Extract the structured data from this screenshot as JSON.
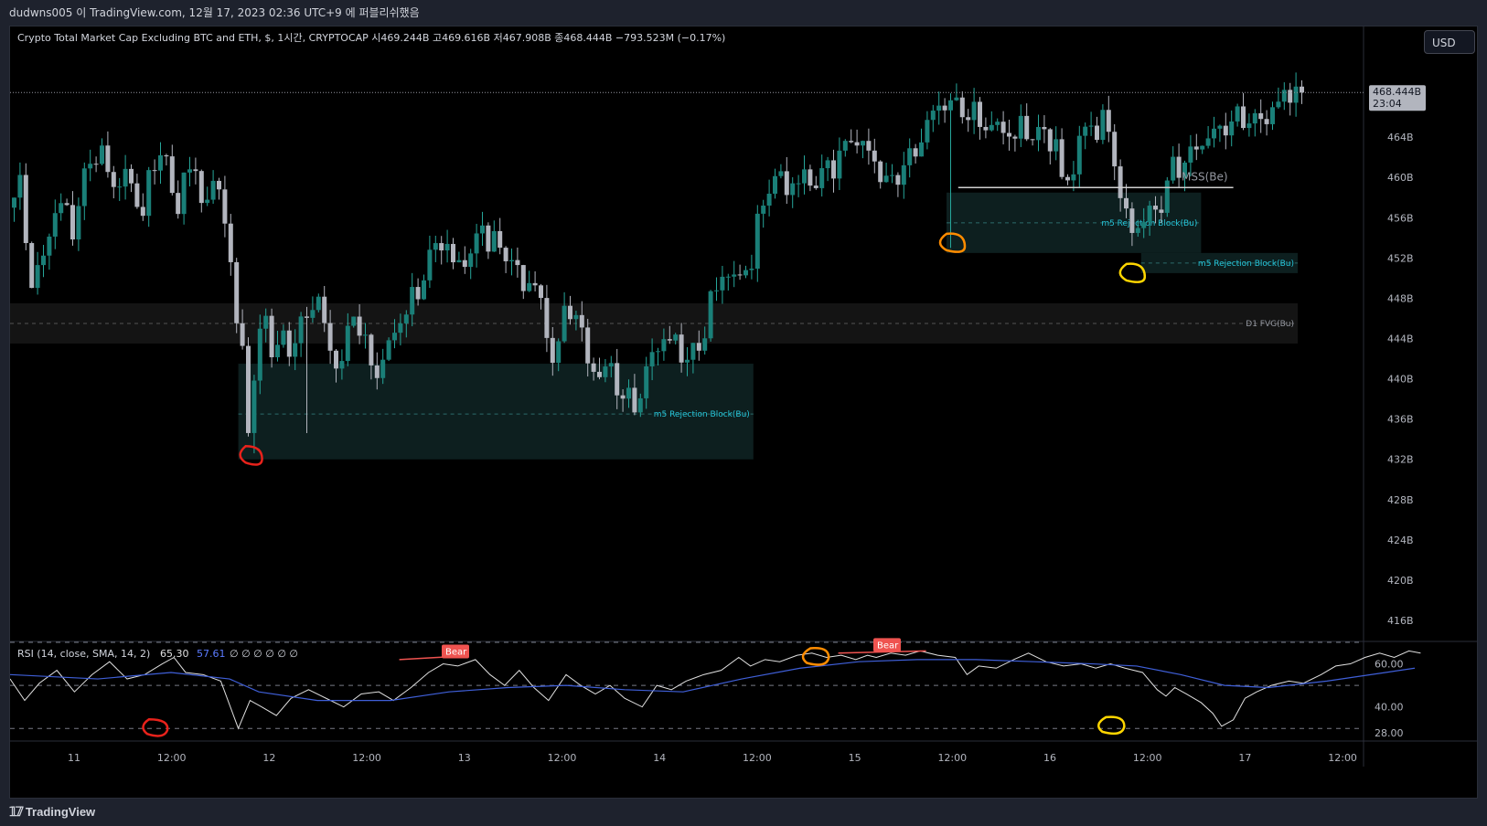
{
  "header": {
    "publish_line": "dudwns005 이 TradingView.com, 12월 17, 2023 02:36 UTC+9 에 퍼블리쉬했음"
  },
  "legend": {
    "symbol": "Crypto Total Market Cap Excluding BTC and ETH, $, 1시간, CRYPTOCAP",
    "ohlc_text": "시469.244B  고469.616B  저467.908B  종468.444B  −793.523M (−0.17%)"
  },
  "currency_button": "USD",
  "rsi_legend": {
    "label": "RSI (14, close, SMA, 14, 2)",
    "rsi_value": "65.30",
    "ma_value": "57.61",
    "extras": "∅ ∅ ∅ ∅ ∅ ∅"
  },
  "price_tag": {
    "price": "468.444B",
    "countdown": "23:04"
  },
  "branding": "TradingView",
  "colors": {
    "up": "#26a69a",
    "up_body": "#1a7f78",
    "down": "#b2b5be",
    "rsi_line": "#e0e0e0",
    "rsi_ma": "#3f5fd8",
    "bear_label": "#ef5350",
    "zone_fill": "#0d1f1f",
    "fvg_fill": "#141414",
    "zone_label": "#26c6da",
    "circle_red": "#e8221b",
    "circle_orange": "#ff8c00",
    "circle_yellow": "#ffd600"
  },
  "chart_data": [
    {
      "type": "candlestick",
      "title": "Crypto Total Market Cap Excluding BTC and ETH, $, 1시간, CRYPTOCAP",
      "ylim": [
        414,
        475
      ],
      "y_ticks": [
        416,
        420,
        424,
        428,
        432,
        436,
        440,
        444,
        448,
        452,
        456,
        460,
        464
      ],
      "y_tick_labels": [
        "416B",
        "420B",
        "424B",
        "428B",
        "432B",
        "436B",
        "440B",
        "444B",
        "448B",
        "452B",
        "456B",
        "460B",
        "464B"
      ],
      "x_tick_labels": [
        "11",
        "12:00",
        "12",
        "12:00",
        "13",
        "12:00",
        "14",
        "12:00",
        "15",
        "12:00",
        "16",
        "12:00",
        "17",
        "12:00"
      ],
      "last_price": 468.444,
      "close_path": [
        [
          0,
          457
        ],
        [
          8,
          459
        ],
        [
          16,
          449.5
        ],
        [
          24,
          452
        ],
        [
          34,
          458
        ],
        [
          44,
          455
        ],
        [
          54,
          461
        ],
        [
          62,
          463
        ],
        [
          72,
          459
        ],
        [
          80,
          460.5
        ],
        [
          90,
          456.5
        ],
        [
          98,
          460
        ],
        [
          106,
          464
        ],
        [
          114,
          455.5
        ],
        [
          122,
          462
        ],
        [
          132,
          458
        ],
        [
          140,
          459
        ],
        [
          148,
          457
        ],
        [
          156,
          445
        ],
        [
          160,
          443.5
        ],
        [
          165,
          433
        ],
        [
          170,
          444
        ],
        [
          176,
          446
        ],
        [
          182,
          442
        ],
        [
          188,
          444
        ],
        [
          194,
          443
        ],
        [
          204,
          446.5
        ],
        [
          212,
          448
        ],
        [
          220,
          442.5
        ],
        [
          228,
          441.5
        ],
        [
          236,
          447
        ],
        [
          244,
          443
        ],
        [
          252,
          440.5
        ],
        [
          262,
          444
        ],
        [
          270,
          446.5
        ],
        [
          278,
          448
        ],
        [
          288,
          452
        ],
        [
          296,
          454
        ],
        [
          306,
          451
        ],
        [
          316,
          452.5
        ],
        [
          324,
          455
        ],
        [
          334,
          453
        ],
        [
          344,
          452
        ],
        [
          352,
          449
        ],
        [
          360,
          450
        ],
        [
          368,
          444
        ],
        [
          374,
          442
        ],
        [
          382,
          447.5
        ],
        [
          390,
          446
        ],
        [
          396,
          441.5
        ],
        [
          404,
          440.5
        ],
        [
          412,
          441
        ],
        [
          420,
          438
        ],
        [
          430,
          437.5
        ],
        [
          440,
          442.5
        ],
        [
          448,
          444
        ],
        [
          456,
          443.5
        ],
        [
          464,
          442
        ],
        [
          472,
          443
        ],
        [
          480,
          447.5
        ],
        [
          490,
          451
        ],
        [
          498,
          449.5
        ],
        [
          508,
          452
        ],
        [
          518,
          459
        ],
        [
          526,
          460
        ],
        [
          534,
          459
        ],
        [
          544,
          460
        ],
        [
          552,
          459.5
        ],
        [
          560,
          461
        ],
        [
          568,
          462
        ],
        [
          576,
          464
        ],
        [
          586,
          463
        ],
        [
          594,
          461
        ],
        [
          602,
          459
        ],
        [
          610,
          461
        ],
        [
          618,
          462
        ],
        [
          624,
          464
        ],
        [
          632,
          466.5
        ],
        [
          640,
          467.5
        ],
        [
          650,
          467
        ],
        [
          660,
          466
        ],
        [
          670,
          465
        ],
        [
          678,
          465
        ],
        [
          686,
          464
        ],
        [
          694,
          465
        ],
        [
          702,
          464
        ],
        [
          710,
          464.5
        ],
        [
          716,
          463
        ],
        [
          720,
          460
        ],
        [
          724,
          459.5
        ],
        [
          728,
          461
        ],
        [
          732,
          464
        ],
        [
          740,
          465
        ],
        [
          750,
          465.5
        ],
        [
          756,
          462
        ],
        [
          760,
          458
        ],
        [
          764,
          456
        ],
        [
          770,
          454.5
        ],
        [
          776,
          456
        ],
        [
          782,
          456.5
        ],
        [
          788,
          457.5
        ],
        [
          796,
          461
        ],
        [
          804,
          461.5
        ],
        [
          812,
          463
        ],
        [
          820,
          464
        ],
        [
          830,
          465
        ],
        [
          836,
          465.5
        ],
        [
          844,
          466
        ],
        [
          852,
          465.5
        ],
        [
          860,
          466
        ],
        [
          868,
          467.5
        ],
        [
          876,
          468.5
        ],
        [
          880,
          469
        ]
      ],
      "zones": [
        {
          "label": "m5 Rejection Block(Bu)",
          "x_from": 156,
          "x_to": 508,
          "top": 441.5,
          "bottom": 432,
          "mid": 436.5
        },
        {
          "label": "m5 Rejection Block(Bu)",
          "x_from": 640,
          "x_to": 814,
          "top": 458.5,
          "bottom": 452.5,
          "mid": 455.5
        },
        {
          "label": "m5 Rejection Block(Bu)",
          "x_from": 773,
          "x_to": 880,
          "top": 452.5,
          "bottom": 450.5,
          "mid": 451.5
        },
        {
          "label": "D1 FVG(Bu)",
          "x_from": 0,
          "x_to": 880,
          "top": 447.5,
          "bottom": 443.5,
          "mid": 445.5
        }
      ],
      "mss": {
        "label": "MSS(Be)",
        "level": 459,
        "x_from": 648,
        "x_to": 836
      }
    },
    {
      "type": "line",
      "title": "RSI (14, close, SMA, 14, 2)",
      "ylim": [
        25,
        70
      ],
      "y_ticks": [
        28,
        40,
        60
      ],
      "y_tick_labels": [
        "28.00",
        "40.00",
        "60.00"
      ],
      "bands": [
        30,
        50,
        70
      ],
      "series": [
        {
          "name": "RSI",
          "points": [
            [
              0,
              53
            ],
            [
              10,
              43
            ],
            [
              20,
              51
            ],
            [
              32,
              57
            ],
            [
              44,
              47
            ],
            [
              56,
              55
            ],
            [
              68,
              61
            ],
            [
              80,
              53
            ],
            [
              92,
              55
            ],
            [
              104,
              60
            ],
            [
              112,
              63
            ],
            [
              120,
              56
            ],
            [
              132,
              55
            ],
            [
              144,
              52
            ],
            [
              156,
              30
            ],
            [
              164,
              43
            ],
            [
              172,
              40
            ],
            [
              182,
              36
            ],
            [
              192,
              44
            ],
            [
              204,
              48
            ],
            [
              216,
              44
            ],
            [
              228,
              40
            ],
            [
              240,
              46
            ],
            [
              252,
              47
            ],
            [
              262,
              43
            ],
            [
              274,
              49
            ],
            [
              286,
              56
            ],
            [
              296,
              60
            ],
            [
              306,
              59
            ],
            [
              318,
              62
            ],
            [
              328,
              55
            ],
            [
              338,
              50
            ],
            [
              348,
              57
            ],
            [
              358,
              49
            ],
            [
              368,
              43
            ],
            [
              380,
              55
            ],
            [
              390,
              50
            ],
            [
              400,
              46
            ],
            [
              410,
              50
            ],
            [
              420,
              44
            ],
            [
              432,
              40
            ],
            [
              442,
              50
            ],
            [
              452,
              48
            ],
            [
              462,
              52
            ],
            [
              474,
              55
            ],
            [
              486,
              57
            ],
            [
              498,
              63
            ],
            [
              506,
              59
            ],
            [
              516,
              62
            ],
            [
              526,
              61
            ],
            [
              538,
              64
            ],
            [
              548,
              65
            ],
            [
              558,
              63
            ],
            [
              568,
              64
            ],
            [
              578,
              62
            ],
            [
              586,
              64
            ],
            [
              592,
              63
            ],
            [
              602,
              65
            ],
            [
              612,
              64
            ],
            [
              622,
              66
            ],
            [
              634,
              64
            ],
            [
              646,
              63
            ],
            [
              654,
              55
            ],
            [
              662,
              59
            ],
            [
              674,
              58
            ],
            [
              686,
              62
            ],
            [
              696,
              65
            ],
            [
              708,
              61
            ],
            [
              720,
              59
            ],
            [
              732,
              60
            ],
            [
              742,
              58
            ],
            [
              752,
              60
            ],
            [
              762,
              58
            ],
            [
              774,
              56
            ],
            [
              784,
              48
            ],
            [
              790,
              45
            ],
            [
              796,
              49
            ],
            [
              804,
              46
            ],
            [
              814,
              42
            ],
            [
              822,
              37
            ],
            [
              828,
              31
            ],
            [
              836,
              34
            ],
            [
              844,
              44
            ],
            [
              852,
              47
            ],
            [
              862,
              50
            ],
            [
              874,
              52
            ],
            [
              884,
              51
            ],
            [
              896,
              55
            ],
            [
              906,
              59
            ],
            [
              916,
              60
            ],
            [
              926,
              63
            ],
            [
              936,
              65
            ],
            [
              946,
              63
            ],
            [
              956,
              66
            ],
            [
              964,
              65
            ]
          ]
        },
        {
          "name": "MA",
          "points": [
            [
              0,
              55
            ],
            [
              60,
              53
            ],
            [
              110,
              56
            ],
            [
              150,
              53
            ],
            [
              170,
              47
            ],
            [
              210,
              43
            ],
            [
              260,
              43
            ],
            [
              300,
              47
            ],
            [
              340,
              49
            ],
            [
              380,
              50
            ],
            [
              420,
              48
            ],
            [
              460,
              47
            ],
            [
              500,
              53
            ],
            [
              540,
              58
            ],
            [
              580,
              61
            ],
            [
              620,
              62
            ],
            [
              660,
              62
            ],
            [
              700,
              61
            ],
            [
              740,
              60
            ],
            [
              770,
              59
            ],
            [
              800,
              55
            ],
            [
              830,
              50
            ],
            [
              860,
              49
            ],
            [
              900,
              52
            ],
            [
              940,
              56
            ],
            [
              960,
              58
            ]
          ]
        }
      ],
      "bear_labels": [
        {
          "text": "Bear",
          "x": 330,
          "value": 63
        },
        {
          "text": "Bear",
          "x": 700,
          "value": 66
        }
      ]
    }
  ]
}
